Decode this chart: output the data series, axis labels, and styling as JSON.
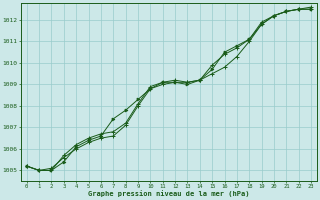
{
  "title": "Graphe pression niveau de la mer (hPa)",
  "bg_color": "#cce8e8",
  "grid_color": "#99cccc",
  "line_color": "#1a5c1a",
  "x_ticks": [
    0,
    1,
    2,
    3,
    4,
    5,
    6,
    7,
    8,
    9,
    10,
    11,
    12,
    13,
    14,
    15,
    16,
    17,
    18,
    19,
    20,
    21,
    22,
    23
  ],
  "ylim": [
    1004.5,
    1012.8
  ],
  "y_ticks": [
    1005,
    1006,
    1007,
    1008,
    1009,
    1010,
    1011,
    1012
  ],
  "series1": [
    1005.2,
    1005.0,
    1005.1,
    1005.6,
    1006.0,
    1006.3,
    1006.5,
    1006.6,
    1007.1,
    1008.0,
    1008.8,
    1009.0,
    1009.1,
    1009.1,
    1009.2,
    1009.5,
    1009.8,
    1010.3,
    1011.0,
    1011.8,
    1012.2,
    1012.4,
    1012.5,
    1012.5
  ],
  "series2": [
    1005.2,
    1005.0,
    1005.0,
    1005.4,
    1006.1,
    1006.4,
    1006.6,
    1007.4,
    1007.8,
    1008.3,
    1008.8,
    1009.1,
    1009.1,
    1009.0,
    1009.2,
    1009.7,
    1010.5,
    1010.8,
    1011.1,
    1011.8,
    1012.2,
    1012.4,
    1012.5,
    1012.5
  ],
  "series3": [
    1005.2,
    1005.0,
    1005.0,
    1005.7,
    1006.2,
    1006.5,
    1006.7,
    1006.8,
    1007.2,
    1008.1,
    1008.9,
    1009.1,
    1009.2,
    1009.1,
    1009.2,
    1009.9,
    1010.4,
    1010.7,
    1011.1,
    1011.9,
    1012.2,
    1012.4,
    1012.5,
    1012.6
  ],
  "figwidth": 3.2,
  "figheight": 2.0,
  "dpi": 100
}
